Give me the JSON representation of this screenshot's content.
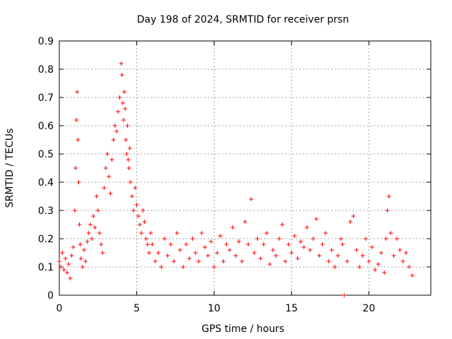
{
  "chart_data": {
    "type": "scatter",
    "title": "Day 198 of 2024, SRMTID for receiver prsn",
    "xlabel": "GPS time / hours",
    "ylabel": "SRMTID / TECUs",
    "xlim": [
      0,
      24
    ],
    "ylim": [
      0,
      0.9
    ],
    "xticks": [
      0,
      5,
      10,
      15,
      20
    ],
    "yticks": [
      0,
      0.1,
      0.2,
      0.3,
      0.4,
      0.5,
      0.6,
      0.7,
      0.8,
      0.9
    ],
    "xtick_labels": [
      "0",
      "5",
      "10",
      "15",
      "20"
    ],
    "ytick_labels": [
      "0",
      "0.1",
      "0.2",
      "0.3",
      "0.4",
      "0.5",
      "0.6",
      "0.7",
      "0.8",
      "0.9"
    ],
    "grid": true,
    "marker": "plus",
    "color": "#ff0000",
    "series": [
      {
        "name": "SRMTID",
        "x": [
          0.0,
          0.1,
          0.2,
          0.3,
          0.4,
          0.5,
          0.6,
          0.7,
          0.8,
          0.9,
          1.0,
          1.05,
          1.1,
          1.15,
          1.2,
          1.25,
          1.3,
          1.35,
          1.4,
          1.5,
          1.6,
          1.7,
          1.8,
          1.9,
          2.0,
          2.1,
          2.2,
          2.3,
          2.4,
          2.5,
          2.6,
          2.7,
          2.8,
          2.9,
          3.0,
          3.1,
          3.2,
          3.3,
          3.4,
          3.5,
          3.6,
          3.7,
          3.8,
          3.9,
          4.0,
          4.05,
          4.1,
          4.15,
          4.2,
          4.25,
          4.3,
          4.35,
          4.4,
          4.45,
          4.5,
          4.55,
          4.6,
          4.7,
          4.8,
          4.9,
          5.0,
          5.1,
          5.2,
          5.3,
          5.4,
          5.5,
          5.6,
          5.7,
          5.8,
          5.9,
          6.0,
          6.2,
          6.4,
          6.6,
          6.8,
          7.0,
          7.2,
          7.4,
          7.6,
          7.8,
          8.0,
          8.2,
          8.4,
          8.6,
          8.8,
          9.0,
          9.2,
          9.4,
          9.6,
          9.8,
          10.0,
          10.2,
          10.4,
          10.6,
          10.8,
          11.0,
          11.2,
          11.4,
          11.6,
          11.8,
          12.0,
          12.2,
          12.4,
          12.6,
          12.8,
          13.0,
          13.2,
          13.4,
          13.6,
          13.8,
          14.0,
          14.2,
          14.4,
          14.6,
          14.8,
          15.0,
          15.2,
          15.4,
          15.6,
          15.8,
          16.0,
          16.2,
          16.4,
          16.6,
          16.8,
          17.0,
          17.2,
          17.4,
          17.6,
          17.8,
          18.0,
          18.2,
          18.3,
          18.4,
          18.6,
          18.8,
          19.0,
          19.2,
          19.4,
          19.6,
          19.8,
          20.0,
          20.2,
          20.4,
          20.6,
          20.8,
          21.0,
          21.1,
          21.2,
          21.3,
          21.4,
          21.6,
          21.8,
          22.0,
          22.2,
          22.4,
          22.6,
          22.8
        ],
        "y": [
          0.12,
          0.1,
          0.15,
          0.09,
          0.13,
          0.08,
          0.11,
          0.06,
          0.14,
          0.17,
          0.3,
          0.45,
          0.62,
          0.72,
          0.55,
          0.4,
          0.25,
          0.18,
          0.13,
          0.1,
          0.16,
          0.12,
          0.19,
          0.22,
          0.25,
          0.2,
          0.28,
          0.24,
          0.35,
          0.3,
          0.22,
          0.18,
          0.15,
          0.38,
          0.45,
          0.5,
          0.42,
          0.36,
          0.48,
          0.55,
          0.6,
          0.58,
          0.65,
          0.7,
          0.82,
          0.78,
          0.68,
          0.62,
          0.72,
          0.66,
          0.55,
          0.5,
          0.6,
          0.48,
          0.45,
          0.52,
          0.4,
          0.35,
          0.3,
          0.38,
          0.32,
          0.28,
          0.25,
          0.22,
          0.3,
          0.26,
          0.2,
          0.18,
          0.15,
          0.22,
          0.18,
          0.12,
          0.15,
          0.1,
          0.2,
          0.14,
          0.18,
          0.12,
          0.22,
          0.16,
          0.1,
          0.18,
          0.13,
          0.2,
          0.15,
          0.12,
          0.22,
          0.17,
          0.14,
          0.19,
          0.1,
          0.15,
          0.21,
          0.12,
          0.18,
          0.16,
          0.24,
          0.14,
          0.19,
          0.12,
          0.26,
          0.18,
          0.34,
          0.15,
          0.2,
          0.13,
          0.18,
          0.22,
          0.11,
          0.16,
          0.14,
          0.2,
          0.25,
          0.12,
          0.18,
          0.15,
          0.21,
          0.13,
          0.19,
          0.17,
          0.24,
          0.16,
          0.2,
          0.27,
          0.14,
          0.18,
          0.22,
          0.12,
          0.16,
          0.1,
          0.14,
          0.2,
          0.18,
          0.0,
          0.12,
          0.26,
          0.28,
          0.16,
          0.1,
          0.14,
          0.2,
          0.12,
          0.17,
          0.09,
          0.11,
          0.15,
          0.08,
          0.2,
          0.3,
          0.35,
          0.22,
          0.14,
          0.2,
          0.16,
          0.12,
          0.15,
          0.1,
          0.07
        ]
      }
    ]
  }
}
